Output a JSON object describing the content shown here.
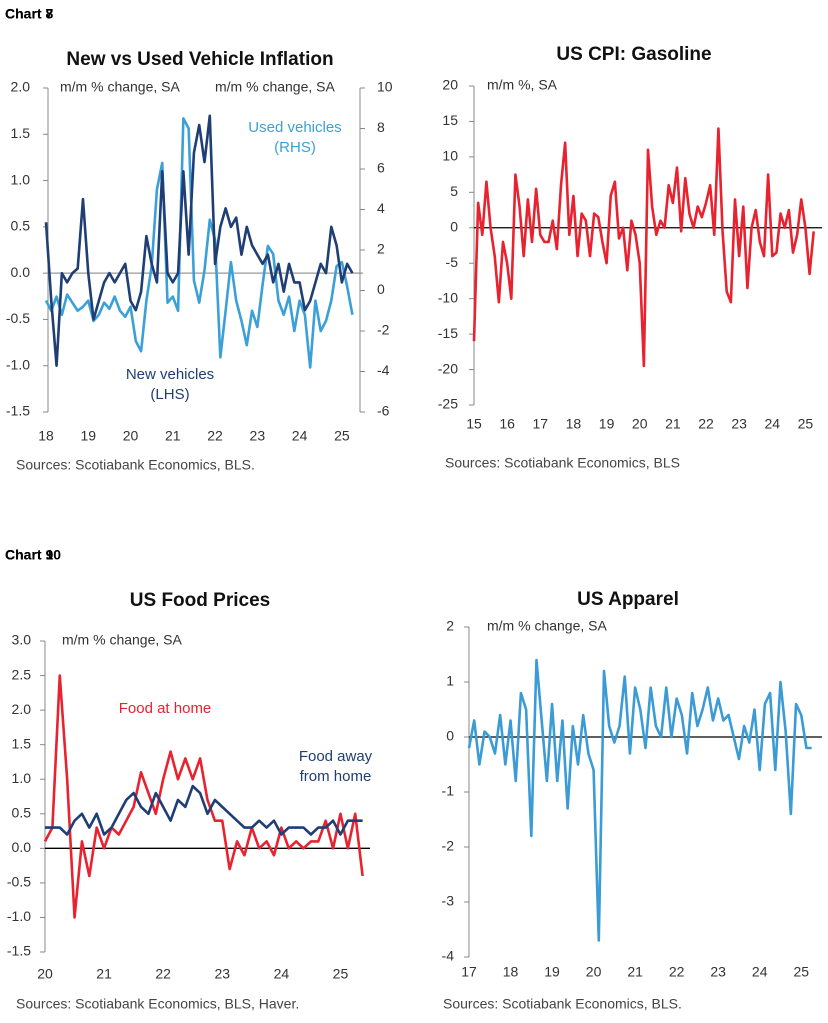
{
  "chart_data": [
    {
      "type": "line",
      "chart_label": "Chart 7",
      "title": "New vs Used Vehicle Inflation",
      "y_label": "m/m % change, SA",
      "y2_label": "m/m % change, SA",
      "source": "Sources: Scotiabank Economics, BLS.",
      "x": [
        18,
        18.125,
        18.25,
        18.375,
        18.5,
        18.625,
        18.75,
        18.875,
        19,
        19.125,
        19.25,
        19.375,
        19.5,
        19.625,
        19.75,
        19.875,
        20,
        20.125,
        20.25,
        20.375,
        20.5,
        20.625,
        20.75,
        20.875,
        21,
        21.125,
        21.25,
        21.375,
        21.5,
        21.625,
        21.75,
        21.875,
        22,
        22.125,
        22.25,
        22.375,
        22.5,
        22.625,
        22.75,
        22.875,
        23,
        23.125,
        23.25,
        23.375,
        23.5,
        23.625,
        23.75,
        23.875,
        24,
        24.125,
        24.25,
        24.375,
        24.5,
        24.625,
        24.75,
        24.875,
        25,
        25.125,
        25.25
      ],
      "xlim": [
        18,
        25.5
      ],
      "xticks": [
        18,
        19,
        20,
        21,
        22,
        23,
        24,
        25
      ],
      "ylim": [
        -1.5,
        2
      ],
      "yticks": [
        {
          "value": 2,
          "label": "2.0"
        },
        1.5,
        {
          "value": 1,
          "label": "1.0"
        },
        0.5,
        {
          "value": 0,
          "label": "0.0"
        },
        -0.5,
        {
          "value": -1,
          "label": "-1.0"
        },
        -1.5
      ],
      "y2lim": [
        -6,
        10
      ],
      "y2ticks": [
        10,
        8,
        6,
        4,
        2,
        0,
        -2,
        -4,
        -6
      ],
      "series": [
        {
          "name": "Used vehicles (RHS)",
          "color": "#3ba0d8",
          "axis": "y2",
          "values": [
            -0.5,
            -1.0,
            -0.3,
            -1.2,
            -0.2,
            -0.6,
            -1.0,
            -0.8,
            -0.5,
            -1.5,
            -1.2,
            -0.6,
            -0.9,
            -0.3,
            -1.0,
            -1.3,
            -0.8,
            -2.5,
            -3.0,
            -0.5,
            1.2,
            5.0,
            6.3,
            -0.6,
            -0.3,
            -1.0,
            8.5,
            8.0,
            0.5,
            -0.6,
            1.0,
            3.5,
            2.5,
            -3.3,
            -1.0,
            1.4,
            -0.5,
            -1.5,
            -2.7,
            -1.0,
            -1.8,
            0.3,
            2.2,
            1.8,
            -0.5,
            -1.2,
            -0.3,
            -2.0,
            -0.5,
            -1.2,
            -3.8,
            -0.5,
            -2.0,
            -1.5,
            -0.5,
            1.2,
            1.4,
            0.2,
            -1.2
          ]
        },
        {
          "name": "New vehicles (LHS)",
          "color": "#1f3e75",
          "values": [
            0.55,
            -0.3,
            -1.0,
            0.0,
            -0.1,
            0.0,
            0.05,
            0.8,
            0.0,
            -0.5,
            -0.3,
            -0.1,
            0.0,
            -0.1,
            0.0,
            0.1,
            -0.3,
            -0.4,
            -0.2,
            0.4,
            0.1,
            -0.1,
            1.1,
            0.0,
            -0.1,
            0.0,
            1.1,
            0.2,
            1.3,
            1.6,
            1.2,
            1.7,
            0.1,
            0.5,
            0.7,
            0.5,
            0.6,
            0.2,
            0.5,
            0.3,
            0.2,
            0.1,
            0.2,
            -0.1,
            0.1,
            -0.2,
            0.1,
            -0.1,
            -0.1,
            -0.4,
            -0.3,
            -0.1,
            0.1,
            0.0,
            0.5,
            0.3,
            -0.1,
            0.1,
            0.0
          ]
        }
      ]
    },
    {
      "type": "line",
      "chart_label": "Chart 8",
      "title": "US CPI: Gasoline",
      "y_label": "m/m %, SA",
      "source": "Sources: Scotiabank Economics, BLS",
      "x": [
        15,
        15.125,
        15.25,
        15.375,
        15.5,
        15.625,
        15.75,
        15.875,
        16,
        16.125,
        16.25,
        16.375,
        16.5,
        16.625,
        16.75,
        16.875,
        17,
        17.125,
        17.25,
        17.375,
        17.5,
        17.625,
        17.75,
        17.875,
        18,
        18.125,
        18.25,
        18.375,
        18.5,
        18.625,
        18.75,
        18.875,
        19,
        19.125,
        19.25,
        19.375,
        19.5,
        19.625,
        19.75,
        19.875,
        20,
        20.125,
        20.25,
        20.375,
        20.5,
        20.625,
        20.75,
        20.875,
        21,
        21.125,
        21.25,
        21.375,
        21.5,
        21.625,
        21.75,
        21.875,
        22,
        22.125,
        22.25,
        22.375,
        22.5,
        22.625,
        22.75,
        22.875,
        23,
        23.125,
        23.25,
        23.375,
        23.5,
        23.625,
        23.75,
        23.875,
        24,
        24.125,
        24.25,
        24.375,
        24.5,
        24.625,
        24.75,
        24.875,
        25,
        25.125,
        25.25
      ],
      "xlim": [
        15,
        25.5
      ],
      "xticks": [
        15,
        16,
        17,
        18,
        19,
        20,
        21,
        22,
        23,
        24,
        25
      ],
      "ylim": [
        -25,
        20
      ],
      "yticks": [
        20,
        15,
        10,
        5,
        0,
        -5,
        -10,
        -15,
        -20,
        -25
      ],
      "color": "#e8222f",
      "values": [
        -16,
        3.5,
        -1,
        6.5,
        0,
        -4,
        -10.5,
        -2,
        -5,
        -10,
        7.5,
        3,
        -4,
        4,
        -2,
        5.5,
        -1,
        -2,
        -2,
        1,
        -3,
        6,
        12,
        -1,
        4.5,
        -4,
        2,
        1,
        -4,
        2,
        1.5,
        -2,
        -5,
        4.5,
        6.5,
        -1.5,
        0,
        -6,
        1,
        -1,
        -5,
        -19.5,
        11,
        3,
        -1,
        1,
        0,
        6,
        3.5,
        8.5,
        -0.5,
        7,
        2,
        0,
        3,
        1.5,
        3.5,
        6,
        -1,
        14,
        -0.5,
        -9,
        -10.5,
        4,
        -4,
        3,
        -8.5,
        0,
        2.5,
        -2,
        -4,
        7.5,
        -4,
        -3.5,
        2,
        0,
        2.5,
        -3.5,
        -1,
        4,
        0,
        -6.5,
        -0.5
      ]
    },
    {
      "type": "line",
      "chart_label": "Chart 9",
      "title": "US Food Prices",
      "y_label": "m/m % change, SA",
      "source": "Sources: Scotiabank Economics, BLS, Haver.",
      "x": [
        20,
        20.125,
        20.25,
        20.375,
        20.5,
        20.625,
        20.75,
        20.875,
        21,
        21.125,
        21.25,
        21.375,
        21.5,
        21.625,
        21.75,
        21.875,
        22,
        22.125,
        22.25,
        22.375,
        22.5,
        22.625,
        22.75,
        22.875,
        23,
        23.125,
        23.25,
        23.375,
        23.5,
        23.625,
        23.75,
        23.875,
        24,
        24.125,
        24.25,
        24.375,
        24.5,
        24.625,
        24.75,
        24.875,
        25,
        25.125,
        25.25,
        25.375
      ],
      "xlim": [
        20,
        25.5
      ],
      "xticks": [
        20,
        21,
        22,
        23,
        24,
        25
      ],
      "ylim": [
        -1.5,
        3
      ],
      "yticks": [
        {
          "value": 3,
          "label": "3.0"
        },
        2.5,
        {
          "value": 2,
          "label": "2.0"
        },
        1.5,
        {
          "value": 1,
          "label": "1.0"
        },
        0.5,
        {
          "value": 0,
          "label": "0.0"
        },
        -0.5,
        {
          "value": -1,
          "label": "-1.0"
        },
        -1.5
      ],
      "series": [
        {
          "name": "Food at home",
          "color": "#e8222f",
          "values": [
            0.1,
            0.3,
            2.5,
            1.0,
            -1.0,
            0.1,
            -0.4,
            0.3,
            0.0,
            0.3,
            0.2,
            0.4,
            0.6,
            1.1,
            0.8,
            0.5,
            1.0,
            1.4,
            1.0,
            1.3,
            1.0,
            1.3,
            0.7,
            0.4,
            0.4,
            -0.3,
            0.1,
            -0.1,
            0.3,
            0.0,
            0.1,
            -0.1,
            0.3,
            0.0,
            0.1,
            0.0,
            0.1,
            0.1,
            0.4,
            0.0,
            0.5,
            0.0,
            0.5,
            -0.4
          ]
        },
        {
          "name": "Food away from home",
          "color": "#1f3e75",
          "values": [
            0.3,
            0.3,
            0.3,
            0.2,
            0.4,
            0.5,
            0.3,
            0.5,
            0.2,
            0.3,
            0.5,
            0.7,
            0.8,
            0.6,
            0.5,
            0.8,
            0.6,
            0.4,
            0.7,
            0.6,
            0.9,
            0.8,
            0.5,
            0.7,
            0.6,
            0.5,
            0.4,
            0.3,
            0.3,
            0.4,
            0.3,
            0.4,
            0.2,
            0.3,
            0.3,
            0.3,
            0.2,
            0.3,
            0.3,
            0.4,
            0.2,
            0.4,
            0.4,
            0.4
          ]
        }
      ]
    },
    {
      "type": "line",
      "chart_label": "Chart 10",
      "title": "US Apparel",
      "y_label": "m/m % change, SA",
      "source": "Sources: Scotiabank Economics, BLS.",
      "x": [
        17,
        17.125,
        17.25,
        17.375,
        17.5,
        17.625,
        17.75,
        17.875,
        18,
        18.125,
        18.25,
        18.375,
        18.5,
        18.625,
        18.75,
        18.875,
        19,
        19.125,
        19.25,
        19.375,
        19.5,
        19.625,
        19.75,
        19.875,
        20,
        20.125,
        20.25,
        20.375,
        20.5,
        20.625,
        20.75,
        20.875,
        21,
        21.125,
        21.25,
        21.375,
        21.5,
        21.625,
        21.75,
        21.875,
        22,
        22.125,
        22.25,
        22.375,
        22.5,
        22.625,
        22.75,
        22.875,
        23,
        23.125,
        23.25,
        23.375,
        23.5,
        23.625,
        23.75,
        23.875,
        24,
        24.125,
        24.25,
        24.375,
        24.5,
        24.625,
        24.75,
        24.875,
        25,
        25.125,
        25.25
      ],
      "xlim": [
        17,
        25.5
      ],
      "xticks": [
        17,
        18,
        19,
        20,
        21,
        22,
        23,
        24,
        25
      ],
      "ylim": [
        -4,
        2
      ],
      "yticks": [
        2,
        1,
        0,
        -1,
        -2,
        -3,
        -4
      ],
      "color": "#3a9bd5",
      "values": [
        -0.2,
        0.3,
        -0.5,
        0.1,
        0.0,
        -0.3,
        0.4,
        -0.5,
        0.3,
        -0.8,
        0.8,
        0.5,
        -1.8,
        1.4,
        0.3,
        -0.8,
        0.6,
        -0.8,
        0.3,
        -1.3,
        0.2,
        -0.5,
        0.4,
        -0.3,
        -0.6,
        -3.7,
        1.2,
        0.2,
        -0.1,
        0.2,
        1.1,
        -0.3,
        0.9,
        0.5,
        -0.2,
        0.9,
        0.2,
        0.0,
        0.9,
        0.0,
        0.7,
        0.4,
        -0.3,
        0.8,
        0.2,
        0.5,
        0.9,
        0.3,
        0.7,
        0.3,
        0.4,
        0.0,
        -0.4,
        0.2,
        -0.1,
        0.5,
        -0.6,
        0.6,
        0.8,
        -0.6,
        1.0,
        0.1,
        -1.4,
        0.6,
        0.4,
        -0.2,
        -0.2
      ]
    }
  ]
}
